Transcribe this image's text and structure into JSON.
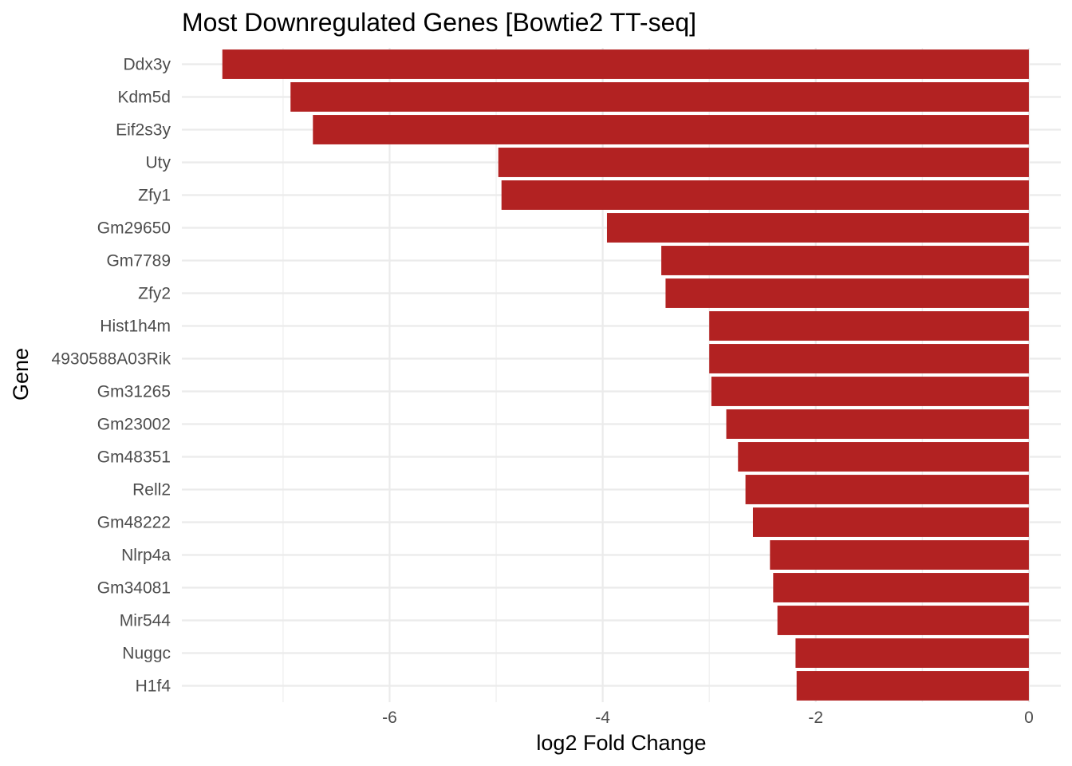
{
  "chart_data": {
    "type": "bar",
    "orientation": "horizontal",
    "title": "Most Downregulated Genes [Bowtie2 TT-seq]",
    "xlabel": "log2 Fold Change",
    "ylabel": "Gene",
    "xlim": [
      -7.95,
      0.3
    ],
    "xticks": [
      -6,
      -4,
      -2,
      0
    ],
    "xtick_labels": [
      "-6",
      "-4",
      "-2",
      "0"
    ],
    "grid": true,
    "bar_color": "#B22222",
    "categories": [
      "Ddx3y",
      "Kdm5d",
      "Eif2s3y",
      "Uty",
      "Zfy1",
      "Gm29650",
      "Gm7789",
      "Zfy2",
      "Hist1h4m",
      "4930588A03Rik",
      "Gm31265",
      "Gm23002",
      "Gm48351",
      "Rell2",
      "Gm48222",
      "Nlrp4a",
      "Gm34081",
      "Mir544",
      "Nuggc",
      "H1f4"
    ],
    "values": [
      -7.57,
      -6.93,
      -6.72,
      -4.98,
      -4.95,
      -3.96,
      -3.45,
      -3.41,
      -3.0,
      -3.0,
      -2.98,
      -2.84,
      -2.73,
      -2.66,
      -2.59,
      -2.43,
      -2.4,
      -2.36,
      -2.19,
      -2.18
    ]
  }
}
